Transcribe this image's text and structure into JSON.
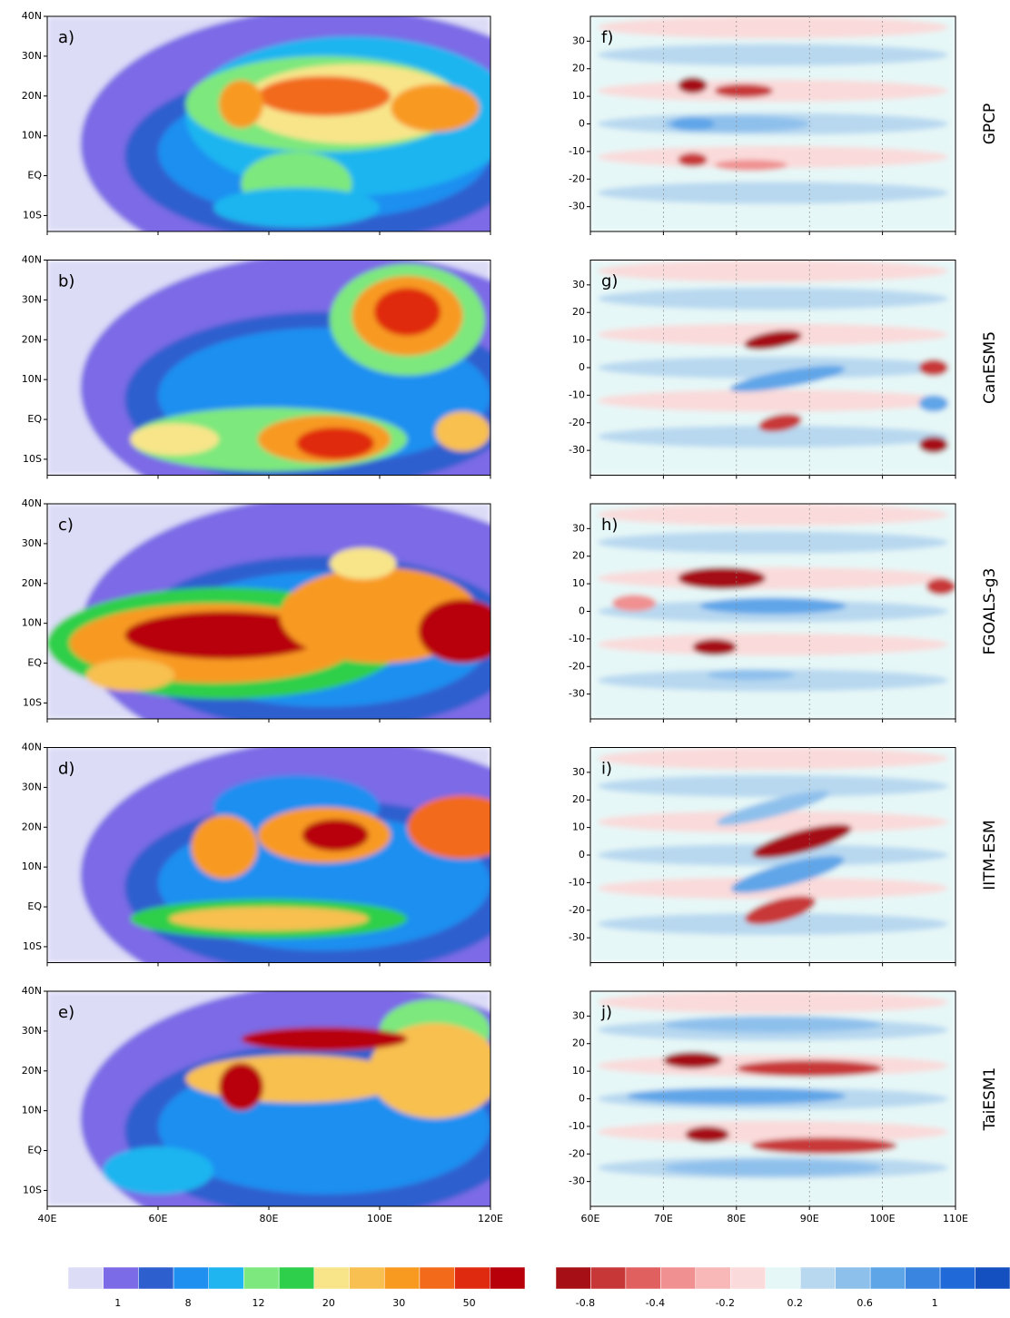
{
  "left_panels": [
    {
      "label": "a)"
    },
    {
      "label": "b)"
    },
    {
      "label": "c)"
    },
    {
      "label": "d)"
    },
    {
      "label": "e)"
    }
  ],
  "right_panels": [
    {
      "label": "f)",
      "model": "GPCP"
    },
    {
      "label": "g)",
      "model": "CanESM5"
    },
    {
      "label": "h)",
      "model": "FGOALS-g3"
    },
    {
      "label": "i)",
      "model": "IITM-ESM"
    },
    {
      "label": "j)",
      "model": "TaiESM1"
    }
  ],
  "map_axis": {
    "xlim": [
      40,
      120
    ],
    "ylim": [
      -14,
      40
    ],
    "xticks": [
      {
        "value": 40,
        "label": "40E"
      },
      {
        "value": 60,
        "label": "60E"
      },
      {
        "value": 80,
        "label": "80E"
      },
      {
        "value": 100,
        "label": "100E"
      },
      {
        "value": 120,
        "label": "120E"
      }
    ],
    "yticks": [
      {
        "value": 40,
        "label": "40N"
      },
      {
        "value": 30,
        "label": "30N"
      },
      {
        "value": 20,
        "label": "20N"
      },
      {
        "value": 10,
        "label": "10N"
      },
      {
        "value": 0,
        "label": "EQ"
      },
      {
        "value": -10,
        "label": "10S"
      }
    ]
  },
  "hov_axis": {
    "xlim": [
      60,
      110
    ],
    "ylim": [
      -39,
      39
    ],
    "xticks": [
      {
        "value": 60,
        "label": "60E"
      },
      {
        "value": 70,
        "label": "70E"
      },
      {
        "value": 80,
        "label": "80E"
      },
      {
        "value": 90,
        "label": "90E"
      },
      {
        "value": 100,
        "label": "100E"
      },
      {
        "value": 110,
        "label": "110E"
      }
    ],
    "yticks": [
      30,
      20,
      10,
      0,
      -10,
      -20,
      -30
    ]
  },
  "left_colorbar": {
    "colors": [
      "#dcdcf7",
      "#7b6be6",
      "#2d5fcf",
      "#1f8ff0",
      "#1fb5f0",
      "#7de87d",
      "#2ecf4a",
      "#f8e58a",
      "#f8c050",
      "#f89a20",
      "#f26a1a",
      "#e02a10",
      "#b8000a"
    ],
    "labels": [
      1,
      8,
      12,
      20,
      30,
      50
    ]
  },
  "right_colorbar": {
    "colors": [
      "#a50f15",
      "#c83737",
      "#e06060",
      "#f09090",
      "#f8b8b8",
      "#fadada",
      "#e6f7f7",
      "#b8d8f0",
      "#8ec0ec",
      "#5ea5e8",
      "#3a85e0",
      "#1f6ad8",
      "#1550c0"
    ],
    "labels": [
      -0.8,
      -0.4,
      -0.2,
      0.2,
      0.6,
      1
    ]
  }
}
